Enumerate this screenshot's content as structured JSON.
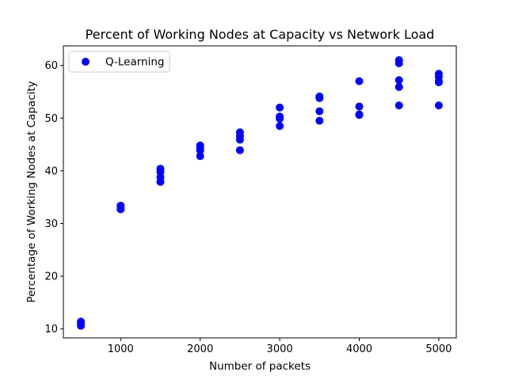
{
  "chart_data": {
    "type": "scatter",
    "title": "Percent of Working Nodes at Capacity vs Network Load",
    "xlabel": "Number of packets",
    "ylabel": "Percentage of Working Nodes at Capacity",
    "xlim": [
      280,
      5220
    ],
    "ylim": [
      8.3,
      63.7
    ],
    "xticks": [
      1000,
      2000,
      3000,
      4000,
      5000
    ],
    "yticks": [
      10,
      20,
      30,
      40,
      50,
      60
    ],
    "grid": false,
    "legend_position": "top-left",
    "series": [
      {
        "name": "Q-Learning",
        "color": "#0000ff",
        "marker": "circle",
        "points": [
          {
            "x": 500,
            "y": 11.4
          },
          {
            "x": 500,
            "y": 11.0
          },
          {
            "x": 500,
            "y": 10.6
          },
          {
            "x": 1000,
            "y": 33.4
          },
          {
            "x": 1000,
            "y": 33.0
          },
          {
            "x": 1000,
            "y": 32.7
          },
          {
            "x": 1500,
            "y": 40.4
          },
          {
            "x": 1500,
            "y": 39.8
          },
          {
            "x": 1500,
            "y": 38.8
          },
          {
            "x": 1500,
            "y": 37.9
          },
          {
            "x": 2000,
            "y": 44.8
          },
          {
            "x": 2000,
            "y": 44.3
          },
          {
            "x": 2000,
            "y": 43.9
          },
          {
            "x": 2000,
            "y": 42.8
          },
          {
            "x": 2500,
            "y": 47.3
          },
          {
            "x": 2500,
            "y": 46.6
          },
          {
            "x": 2500,
            "y": 45.9
          },
          {
            "x": 2500,
            "y": 43.9
          },
          {
            "x": 3000,
            "y": 52.0
          },
          {
            "x": 3000,
            "y": 50.3
          },
          {
            "x": 3000,
            "y": 49.9
          },
          {
            "x": 3000,
            "y": 48.5
          },
          {
            "x": 3500,
            "y": 54.1
          },
          {
            "x": 3500,
            "y": 53.8
          },
          {
            "x": 3500,
            "y": 51.3
          },
          {
            "x": 3500,
            "y": 49.5
          },
          {
            "x": 4000,
            "y": 57.0
          },
          {
            "x": 4000,
            "y": 52.2
          },
          {
            "x": 4000,
            "y": 50.7
          },
          {
            "x": 4000,
            "y": 50.6
          },
          {
            "x": 4500,
            "y": 61.0
          },
          {
            "x": 4500,
            "y": 60.4
          },
          {
            "x": 4500,
            "y": 57.2
          },
          {
            "x": 4500,
            "y": 55.9
          },
          {
            "x": 4500,
            "y": 52.4
          },
          {
            "x": 5000,
            "y": 58.4
          },
          {
            "x": 5000,
            "y": 57.8
          },
          {
            "x": 5000,
            "y": 57.0
          },
          {
            "x": 5000,
            "y": 56.8
          },
          {
            "x": 5000,
            "y": 52.4
          }
        ]
      }
    ]
  }
}
